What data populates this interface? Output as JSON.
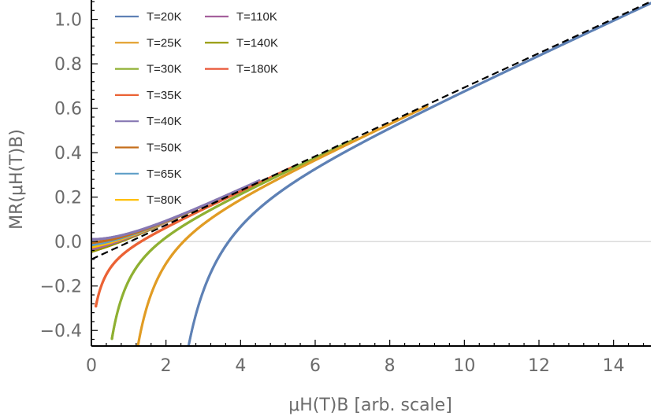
{
  "chart_data": {
    "type": "scatter",
    "xlabel": "μH(T)B  [arb. scale]",
    "ylabel": "MR(μH(T)B)",
    "xlim": [
      0,
      15
    ],
    "ylim": [
      -0.47,
      1.08
    ],
    "x_ticks": [
      "0",
      "2",
      "4",
      "6",
      "8",
      "10",
      "12",
      "14"
    ],
    "y_ticks": [
      "−0.4",
      "−0.2",
      "0.0",
      "0.2",
      "0.4",
      "0.6",
      "0.8",
      "1.0"
    ],
    "grid": false,
    "zero_line": true,
    "legend_position": "top-left",
    "reference_line": {
      "style": "dashed",
      "color": "#000000",
      "points": [
        [
          0,
          -0.08
        ],
        [
          15,
          1.08
        ]
      ]
    },
    "series": [
      {
        "name": "T=20K",
        "color": "#5e81b5",
        "x_start": 2.35,
        "x_end": 15.0,
        "offset": -0.85,
        "k": 0.78
      },
      {
        "name": "T=25K",
        "color": "#e19c24",
        "x_start": 1.18,
        "x_end": 9.0,
        "offset": -0.55,
        "k": 0.95
      },
      {
        "name": "T=30K",
        "color": "#8fb032",
        "x_start": 0.55,
        "x_end": 7.0,
        "offset": -0.4,
        "k": 1.15
      },
      {
        "name": "T=35K",
        "color": "#eb6235",
        "x_start": 0.12,
        "x_end": 5.5,
        "offset": -0.22,
        "k": 1.75
      },
      {
        "name": "T=40K",
        "color": "#8778b3",
        "x_start": 0.0,
        "x_end": 4.5,
        "offset": 0.0,
        "k": 1.0
      },
      {
        "name": "T=50K",
        "color": "#c56e1a",
        "x_start": 0.0,
        "x_end": 4.0,
        "offset": 0.0,
        "k": 1.0
      },
      {
        "name": "T=65K",
        "color": "#5d9ec7",
        "x_start": 0.0,
        "x_end": 3.5,
        "offset": 0.0,
        "k": 1.0
      },
      {
        "name": "T=80K",
        "color": "#ffbf00",
        "x_start": 0.0,
        "x_end": 3.0,
        "offset": 0.0,
        "k": 1.0
      },
      {
        "name": "T=110K",
        "color": "#a5609d",
        "x_start": 0.0,
        "x_end": 2.3,
        "offset": 0.0,
        "k": 1.0
      },
      {
        "name": "T=140K",
        "color": "#929600",
        "x_start": 0.0,
        "x_end": 1.8,
        "offset": 0.0,
        "k": 1.0
      },
      {
        "name": "T=180K",
        "color": "#e95536",
        "x_start": 0.0,
        "x_end": 1.3,
        "offset": 0.0,
        "k": 1.0
      }
    ]
  }
}
